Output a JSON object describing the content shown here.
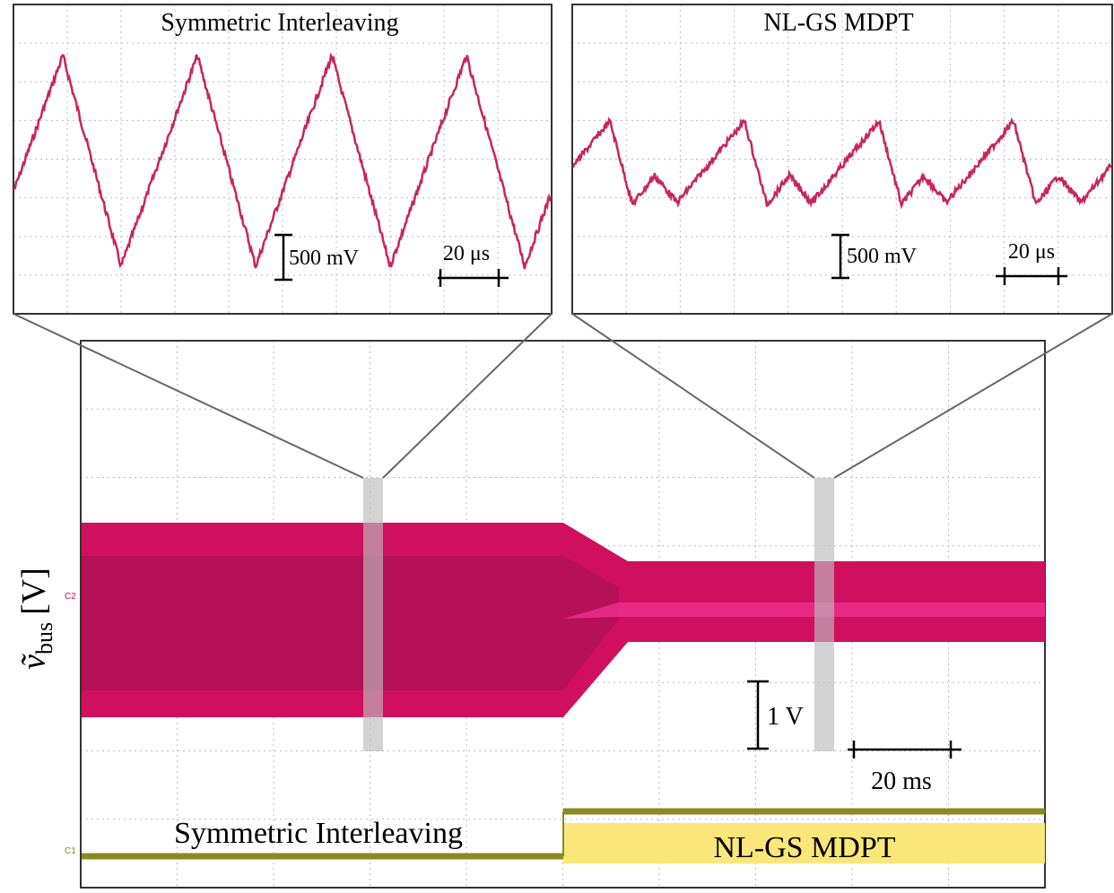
{
  "insets": [
    {
      "title": "Symmetric Interleaving",
      "v_scale": "500 mV",
      "t_scale": "20 μs"
    },
    {
      "title": "NL-GS MDPT",
      "v_scale": "500 mV",
      "t_scale": "20 μs"
    }
  ],
  "main": {
    "y_label": {
      "symbol": "ṽ",
      "subscript": "bus",
      "unit": "[V]"
    },
    "v_scale": "1 V",
    "t_scale": "20 ms",
    "mode_labels": [
      "Symmetric Interleaving",
      "NL-GS MDPT"
    ],
    "channels": [
      "C2",
      "C1"
    ]
  }
}
